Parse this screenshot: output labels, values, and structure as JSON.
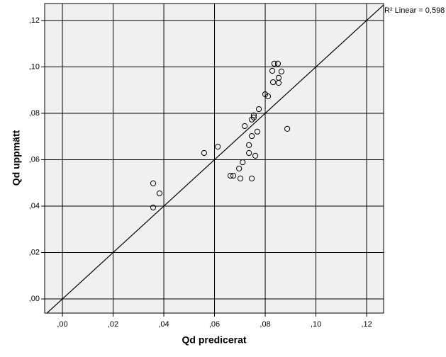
{
  "chart_data": {
    "type": "scatter",
    "xlabel": "Qd predicerat",
    "ylabel": "Qd uppmätt",
    "x": [
      0.0358,
      0.0383,
      0.0358,
      0.0559,
      0.0613,
      0.0663,
      0.0674,
      0.0697,
      0.0702,
      0.0711,
      0.0719,
      0.0736,
      0.0736,
      0.0747,
      0.0747,
      0.0747,
      0.0755,
      0.0755,
      0.0761,
      0.0769,
      0.0775,
      0.08,
      0.0811,
      0.0828,
      0.0831,
      0.0836,
      0.085,
      0.0853,
      0.0853,
      0.0864,
      0.0887
    ],
    "y": [
      0.0498,
      0.0455,
      0.0394,
      0.0629,
      0.0656,
      0.0531,
      0.0531,
      0.0562,
      0.0519,
      0.0589,
      0.0745,
      0.0663,
      0.0629,
      0.0702,
      0.0519,
      0.0773,
      0.0791,
      0.0782,
      0.0617,
      0.0721,
      0.0818,
      0.0882,
      0.0873,
      0.0983,
      0.0934,
      0.1014,
      0.1014,
      0.0953,
      0.0931,
      0.098,
      0.0733
    ],
    "marker_color": "#000000",
    "fit_line": {
      "label": "R² Linear = 0,598",
      "slope": 1,
      "intercept": 0
    },
    "xlim": [
      -0.007,
      0.1267
    ],
    "ylim": [
      -0.0061,
      0.1273
    ],
    "xticks": [
      {
        "value": 0,
        "label": ",00"
      },
      {
        "value": 0.02,
        "label": ",02"
      },
      {
        "value": 0.04,
        "label": ",04"
      },
      {
        "value": 0.06,
        "label": ",06"
      },
      {
        "value": 0.08,
        "label": ",08"
      },
      {
        "value": 0.1,
        "label": ",10"
      },
      {
        "value": 0.12,
        "label": ",12"
      }
    ],
    "yticks": [
      {
        "value": 0,
        "label": ",00"
      },
      {
        "value": 0.02,
        "label": ",02"
      },
      {
        "value": 0.04,
        "label": ",04"
      },
      {
        "value": 0.06,
        "label": ",06"
      },
      {
        "value": 0.08,
        "label": ",08"
      },
      {
        "value": 0.1,
        "label": ",10"
      },
      {
        "value": 0.12,
        "label": ",12"
      }
    ],
    "grid": true
  }
}
